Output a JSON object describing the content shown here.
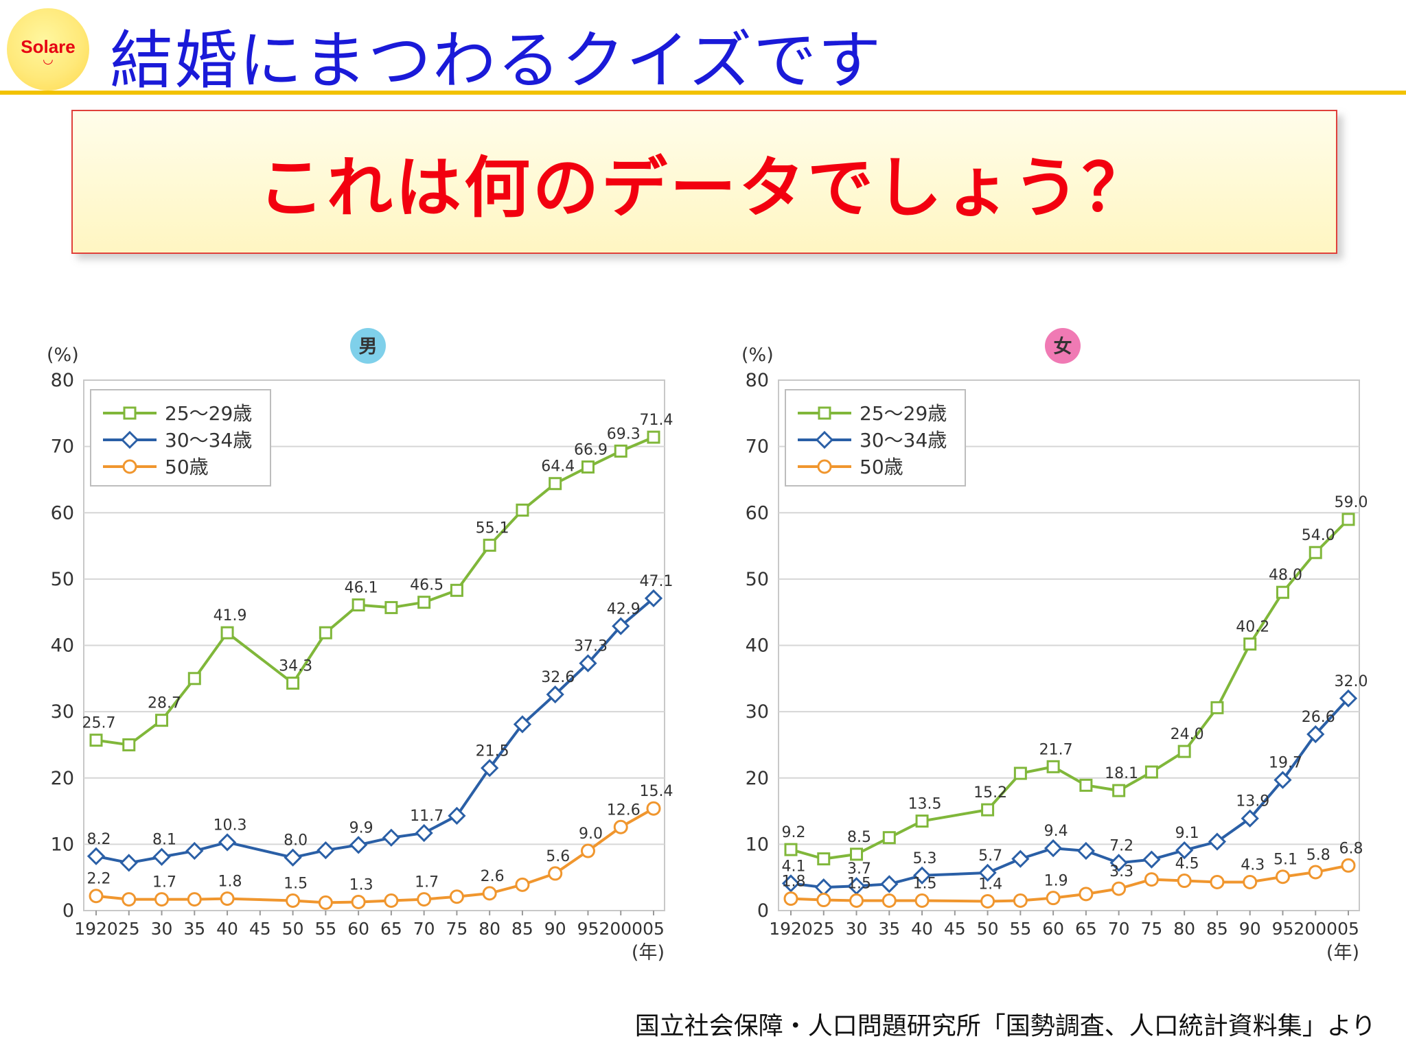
{
  "header": {
    "logo_text": "Solare",
    "title": "結婚にまつわるクイズです"
  },
  "question": "これは何のデータでしょう？",
  "source": "国立社会保障・人口問題研究所「国勢調査、人口統計資料集」より",
  "colors": {
    "series_25_29": "#80b73a",
    "series_30_34": "#2a5fa6",
    "series_50": "#f0962e",
    "male_badge": "#7fd0ea",
    "female_badge": "#f07ab4",
    "title_blue": "#1a1ad8",
    "question_red": "#f2000f"
  },
  "chart_data": [
    {
      "type": "line",
      "title": "男",
      "ylabel": "(%)",
      "xlabel": "(年)",
      "ylim": [
        0,
        80
      ],
      "yticks": [
        0,
        10,
        20,
        30,
        40,
        50,
        60,
        70,
        80
      ],
      "grid": true,
      "legend_position": "top-left",
      "x": [
        1920,
        1925,
        1930,
        1935,
        1940,
        1945,
        1950,
        1955,
        1960,
        1965,
        1970,
        1975,
        1980,
        1985,
        1990,
        1995,
        2000,
        2005
      ],
      "x_tick_labels": [
        "1920",
        "25",
        "30",
        "35",
        "40",
        "45",
        "50",
        "55",
        "60",
        "65",
        "70",
        "75",
        "80",
        "85",
        "90",
        "95",
        "2000",
        "05"
      ],
      "series": [
        {
          "name": "25〜29歳",
          "marker": "square",
          "x": [
            1920,
            1925,
            1930,
            1935,
            1940,
            1950,
            1955,
            1960,
            1965,
            1970,
            1975,
            1980,
            1985,
            1990,
            1995,
            2000,
            2005
          ],
          "values": [
            25.7,
            25.0,
            28.7,
            35.0,
            41.9,
            34.3,
            41.9,
            46.1,
            45.7,
            46.5,
            48.3,
            55.1,
            60.4,
            64.4,
            66.9,
            69.3,
            71.4
          ],
          "labels": [
            "25.7",
            "",
            "28.7",
            "",
            "41.9",
            "34.3",
            "",
            "46.1",
            "",
            "46.5",
            "",
            "55.1",
            "",
            "64.4",
            "66.9",
            "69.3",
            "71.4"
          ]
        },
        {
          "name": "30〜34歳",
          "marker": "diamond",
          "x": [
            1920,
            1925,
            1930,
            1935,
            1940,
            1950,
            1955,
            1960,
            1965,
            1970,
            1975,
            1980,
            1985,
            1990,
            1995,
            2000,
            2005
          ],
          "values": [
            8.2,
            7.2,
            8.1,
            9.0,
            10.3,
            8.0,
            9.1,
            9.9,
            11.0,
            11.7,
            14.3,
            21.5,
            28.1,
            32.6,
            37.3,
            42.9,
            47.1
          ],
          "labels": [
            "8.2",
            "",
            "8.1",
            "",
            "10.3",
            "8.0",
            "",
            "9.9",
            "",
            "11.7",
            "",
            "21.5",
            "",
            "32.6",
            "37.3",
            "42.9",
            "47.1"
          ]
        },
        {
          "name": "50歳",
          "marker": "circle",
          "x": [
            1920,
            1925,
            1930,
            1935,
            1940,
            1950,
            1955,
            1960,
            1965,
            1970,
            1975,
            1980,
            1985,
            1990,
            1995,
            2000,
            2005
          ],
          "values": [
            2.2,
            1.7,
            1.7,
            1.7,
            1.8,
            1.5,
            1.2,
            1.3,
            1.5,
            1.7,
            2.1,
            2.6,
            3.9,
            5.6,
            9.0,
            12.6,
            15.4
          ],
          "labels": [
            "2.2",
            "",
            "1.7",
            "",
            "1.8",
            "1.5",
            "",
            "1.3",
            "",
            "1.7",
            "",
            "2.6",
            "",
            "5.6",
            "9.0",
            "12.6",
            "15.4"
          ]
        }
      ]
    },
    {
      "type": "line",
      "title": "女",
      "ylabel": "(%)",
      "xlabel": "(年)",
      "ylim": [
        0,
        80
      ],
      "yticks": [
        0,
        10,
        20,
        30,
        40,
        50,
        60,
        70,
        80
      ],
      "grid": true,
      "legend_position": "top-left",
      "x": [
        1920,
        1925,
        1930,
        1935,
        1940,
        1945,
        1950,
        1955,
        1960,
        1965,
        1970,
        1975,
        1980,
        1985,
        1990,
        1995,
        2000,
        2005
      ],
      "x_tick_labels": [
        "1920",
        "25",
        "30",
        "35",
        "40",
        "45",
        "50",
        "55",
        "60",
        "65",
        "70",
        "75",
        "80",
        "85",
        "90",
        "95",
        "2000",
        "05"
      ],
      "series": [
        {
          "name": "25〜29歳",
          "marker": "square",
          "x": [
            1920,
            1925,
            1930,
            1935,
            1940,
            1950,
            1955,
            1960,
            1965,
            1970,
            1975,
            1980,
            1985,
            1990,
            1995,
            2000,
            2005
          ],
          "values": [
            9.2,
            7.8,
            8.5,
            11.0,
            13.5,
            15.2,
            20.7,
            21.7,
            18.9,
            18.1,
            20.9,
            24.0,
            30.6,
            40.2,
            48.0,
            54.0,
            59.0
          ],
          "labels": [
            "9.2",
            "",
            "8.5",
            "",
            "13.5",
            "15.2",
            "",
            "21.7",
            "",
            "18.1",
            "",
            "24.0",
            "",
            "40.2",
            "48.0",
            "54.0",
            "59.0"
          ]
        },
        {
          "name": "30〜34歳",
          "marker": "diamond",
          "x": [
            1920,
            1925,
            1930,
            1935,
            1940,
            1950,
            1955,
            1960,
            1965,
            1970,
            1975,
            1980,
            1985,
            1990,
            1995,
            2000,
            2005
          ],
          "values": [
            4.1,
            3.5,
            3.7,
            4.0,
            5.3,
            5.7,
            7.8,
            9.4,
            9.0,
            7.2,
            7.7,
            9.1,
            10.4,
            13.9,
            19.7,
            26.6,
            32.0
          ],
          "labels": [
            "4.1",
            "",
            "3.7",
            "",
            "5.3",
            "5.7",
            "",
            "9.4",
            "",
            "7.2",
            "",
            "9.1",
            "",
            "13.9",
            "19.7",
            "26.6",
            "32.0"
          ]
        },
        {
          "name": "50歳",
          "marker": "circle",
          "x": [
            1920,
            1925,
            1930,
            1935,
            1940,
            1950,
            1955,
            1960,
            1965,
            1970,
            1975,
            1980,
            1985,
            1990,
            1995,
            2000,
            2005
          ],
          "values": [
            1.8,
            1.6,
            1.5,
            1.5,
            1.5,
            1.4,
            1.5,
            1.9,
            2.5,
            3.3,
            4.7,
            4.5,
            4.3,
            4.3,
            5.1,
            5.8,
            6.8
          ],
          "labels": [
            "1.8",
            "",
            "1.5",
            "",
            "1.5",
            "1.4",
            "",
            "1.9",
            "",
            "3.3",
            "",
            "4.5",
            "",
            "4.3",
            "5.1",
            "5.8",
            "6.8"
          ]
        }
      ]
    }
  ]
}
